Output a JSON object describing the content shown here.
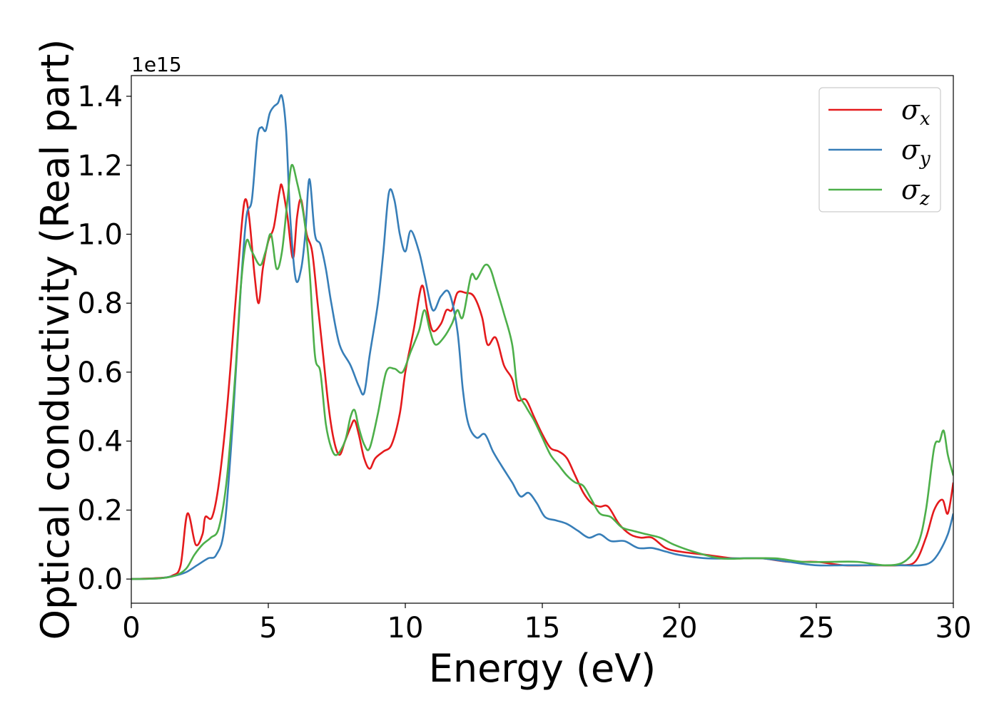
{
  "chart_data": {
    "type": "line",
    "xlabel": "Energy (eV)",
    "ylabel": "Optical conductivity (Real part)",
    "y_offset_label": "1e15",
    "xlim": [
      0,
      30
    ],
    "ylim": [
      -0.07,
      1.46
    ],
    "x_ticks": [
      0,
      5,
      10,
      15,
      20,
      25,
      30
    ],
    "x_tick_labels": [
      "0",
      "5",
      "10",
      "15",
      "20",
      "25",
      "30"
    ],
    "y_ticks": [
      0.0,
      0.2,
      0.4,
      0.6,
      0.8,
      1.0,
      1.2,
      1.4
    ],
    "y_tick_labels": [
      "0.0",
      "0.2",
      "0.4",
      "0.6",
      "0.8",
      "1.0",
      "1.2",
      "1.4"
    ],
    "grid": false,
    "legend_position": "top-right",
    "series": [
      {
        "name": "σx",
        "legend_symbol": "σ",
        "legend_sub": "x",
        "color": "#e41a1c",
        "points": [
          [
            0,
            0
          ],
          [
            1,
            0.003
          ],
          [
            1.5,
            0.01
          ],
          [
            1.8,
            0.04
          ],
          [
            2.05,
            0.19
          ],
          [
            2.35,
            0.1
          ],
          [
            2.6,
            0.13
          ],
          [
            2.7,
            0.18
          ],
          [
            2.95,
            0.18
          ],
          [
            3.2,
            0.28
          ],
          [
            3.5,
            0.5
          ],
          [
            3.8,
            0.8
          ],
          [
            4.0,
            1.0
          ],
          [
            4.15,
            1.1
          ],
          [
            4.3,
            1.05
          ],
          [
            4.5,
            0.88
          ],
          [
            4.65,
            0.8
          ],
          [
            4.8,
            0.9
          ],
          [
            5.0,
            0.98
          ],
          [
            5.2,
            1.02
          ],
          [
            5.4,
            1.12
          ],
          [
            5.5,
            1.14
          ],
          [
            5.7,
            1.05
          ],
          [
            5.9,
            0.93
          ],
          [
            6.05,
            1.05
          ],
          [
            6.2,
            1.1
          ],
          [
            6.4,
            1.0
          ],
          [
            6.6,
            0.95
          ],
          [
            6.8,
            0.8
          ],
          [
            7.0,
            0.65
          ],
          [
            7.2,
            0.5
          ],
          [
            7.4,
            0.4
          ],
          [
            7.6,
            0.36
          ],
          [
            7.8,
            0.4
          ],
          [
            8.0,
            0.44
          ],
          [
            8.15,
            0.46
          ],
          [
            8.3,
            0.42
          ],
          [
            8.5,
            0.35
          ],
          [
            8.7,
            0.32
          ],
          [
            8.9,
            0.35
          ],
          [
            9.2,
            0.37
          ],
          [
            9.5,
            0.39
          ],
          [
            9.8,
            0.48
          ],
          [
            10.0,
            0.6
          ],
          [
            10.3,
            0.72
          ],
          [
            10.6,
            0.85
          ],
          [
            10.8,
            0.78
          ],
          [
            11.0,
            0.72
          ],
          [
            11.3,
            0.74
          ],
          [
            11.5,
            0.78
          ],
          [
            11.7,
            0.78
          ],
          [
            11.9,
            0.83
          ],
          [
            12.2,
            0.83
          ],
          [
            12.5,
            0.82
          ],
          [
            12.8,
            0.76
          ],
          [
            13.0,
            0.68
          ],
          [
            13.3,
            0.7
          ],
          [
            13.6,
            0.62
          ],
          [
            13.9,
            0.58
          ],
          [
            14.1,
            0.52
          ],
          [
            14.4,
            0.52
          ],
          [
            14.7,
            0.47
          ],
          [
            15.0,
            0.42
          ],
          [
            15.3,
            0.38
          ],
          [
            15.6,
            0.37
          ],
          [
            15.9,
            0.35
          ],
          [
            16.2,
            0.3
          ],
          [
            16.5,
            0.25
          ],
          [
            16.8,
            0.22
          ],
          [
            17.1,
            0.21
          ],
          [
            17.4,
            0.21
          ],
          [
            17.8,
            0.16
          ],
          [
            18.2,
            0.13
          ],
          [
            18.6,
            0.12
          ],
          [
            19.0,
            0.12
          ],
          [
            19.5,
            0.09
          ],
          [
            20.0,
            0.08
          ],
          [
            21.0,
            0.07
          ],
          [
            22.0,
            0.06
          ],
          [
            23.0,
            0.06
          ],
          [
            24.0,
            0.05
          ],
          [
            25.0,
            0.05
          ],
          [
            26.0,
            0.04
          ],
          [
            27.0,
            0.04
          ],
          [
            28.0,
            0.04
          ],
          [
            28.6,
            0.05
          ],
          [
            29.0,
            0.12
          ],
          [
            29.3,
            0.2
          ],
          [
            29.6,
            0.23
          ],
          [
            29.8,
            0.19
          ],
          [
            30.0,
            0.28
          ]
        ]
      },
      {
        "name": "σy",
        "legend_symbol": "σ",
        "legend_sub": "y",
        "color": "#377eb8",
        "points": [
          [
            0,
            0
          ],
          [
            1,
            0.002
          ],
          [
            1.6,
            0.01
          ],
          [
            2.0,
            0.02
          ],
          [
            2.4,
            0.04
          ],
          [
            2.8,
            0.06
          ],
          [
            3.1,
            0.07
          ],
          [
            3.4,
            0.15
          ],
          [
            3.7,
            0.45
          ],
          [
            4.0,
            0.85
          ],
          [
            4.2,
            1.05
          ],
          [
            4.4,
            1.1
          ],
          [
            4.6,
            1.28
          ],
          [
            4.75,
            1.31
          ],
          [
            4.9,
            1.3
          ],
          [
            5.05,
            1.35
          ],
          [
            5.2,
            1.37
          ],
          [
            5.35,
            1.38
          ],
          [
            5.5,
            1.4
          ],
          [
            5.65,
            1.3
          ],
          [
            5.8,
            1.05
          ],
          [
            6.0,
            0.87
          ],
          [
            6.2,
            0.9
          ],
          [
            6.35,
            1.0
          ],
          [
            6.5,
            1.16
          ],
          [
            6.7,
            1.0
          ],
          [
            6.9,
            0.97
          ],
          [
            7.1,
            0.9
          ],
          [
            7.3,
            0.8
          ],
          [
            7.6,
            0.68
          ],
          [
            8.0,
            0.62
          ],
          [
            8.3,
            0.56
          ],
          [
            8.5,
            0.54
          ],
          [
            8.7,
            0.65
          ],
          [
            9.0,
            0.8
          ],
          [
            9.2,
            0.95
          ],
          [
            9.4,
            1.12
          ],
          [
            9.6,
            1.1
          ],
          [
            9.8,
            1.0
          ],
          [
            10.0,
            0.95
          ],
          [
            10.2,
            1.01
          ],
          [
            10.5,
            0.95
          ],
          [
            10.7,
            0.88
          ],
          [
            11.0,
            0.78
          ],
          [
            11.3,
            0.82
          ],
          [
            11.6,
            0.83
          ],
          [
            11.9,
            0.72
          ],
          [
            12.1,
            0.55
          ],
          [
            12.3,
            0.45
          ],
          [
            12.6,
            0.41
          ],
          [
            12.9,
            0.42
          ],
          [
            13.2,
            0.37
          ],
          [
            13.5,
            0.33
          ],
          [
            13.9,
            0.28
          ],
          [
            14.2,
            0.24
          ],
          [
            14.5,
            0.25
          ],
          [
            14.8,
            0.22
          ],
          [
            15.1,
            0.18
          ],
          [
            15.5,
            0.17
          ],
          [
            15.9,
            0.16
          ],
          [
            16.3,
            0.14
          ],
          [
            16.7,
            0.12
          ],
          [
            17.1,
            0.13
          ],
          [
            17.5,
            0.11
          ],
          [
            18.0,
            0.11
          ],
          [
            18.5,
            0.09
          ],
          [
            19.0,
            0.09
          ],
          [
            19.5,
            0.08
          ],
          [
            20.0,
            0.07
          ],
          [
            21.0,
            0.06
          ],
          [
            22.0,
            0.06
          ],
          [
            23.0,
            0.06
          ],
          [
            24.0,
            0.05
          ],
          [
            25.0,
            0.04
          ],
          [
            26.0,
            0.04
          ],
          [
            27.0,
            0.04
          ],
          [
            28.0,
            0.04
          ],
          [
            28.8,
            0.04
          ],
          [
            29.2,
            0.05
          ],
          [
            29.5,
            0.08
          ],
          [
            29.8,
            0.13
          ],
          [
            30.0,
            0.19
          ]
        ]
      },
      {
        "name": "σz",
        "legend_symbol": "σ",
        "legend_sub": "z",
        "color": "#4daf4a",
        "points": [
          [
            0,
            0
          ],
          [
            1,
            0.002
          ],
          [
            1.6,
            0.01
          ],
          [
            2.0,
            0.03
          ],
          [
            2.3,
            0.07
          ],
          [
            2.6,
            0.1
          ],
          [
            2.9,
            0.12
          ],
          [
            3.2,
            0.15
          ],
          [
            3.5,
            0.3
          ],
          [
            3.8,
            0.6
          ],
          [
            4.0,
            0.85
          ],
          [
            4.2,
            0.98
          ],
          [
            4.4,
            0.95
          ],
          [
            4.7,
            0.91
          ],
          [
            4.9,
            0.95
          ],
          [
            5.1,
            1.0
          ],
          [
            5.3,
            0.9
          ],
          [
            5.5,
            0.95
          ],
          [
            5.7,
            1.1
          ],
          [
            5.85,
            1.2
          ],
          [
            6.05,
            1.15
          ],
          [
            6.3,
            1.05
          ],
          [
            6.5,
            0.9
          ],
          [
            6.7,
            0.65
          ],
          [
            6.9,
            0.6
          ],
          [
            7.1,
            0.45
          ],
          [
            7.3,
            0.38
          ],
          [
            7.5,
            0.36
          ],
          [
            7.8,
            0.4
          ],
          [
            8.0,
            0.47
          ],
          [
            8.15,
            0.49
          ],
          [
            8.3,
            0.44
          ],
          [
            8.5,
            0.39
          ],
          [
            8.7,
            0.38
          ],
          [
            9.0,
            0.48
          ],
          [
            9.3,
            0.6
          ],
          [
            9.6,
            0.61
          ],
          [
            9.9,
            0.6
          ],
          [
            10.2,
            0.66
          ],
          [
            10.5,
            0.72
          ],
          [
            10.7,
            0.78
          ],
          [
            10.9,
            0.72
          ],
          [
            11.1,
            0.68
          ],
          [
            11.4,
            0.7
          ],
          [
            11.7,
            0.74
          ],
          [
            11.9,
            0.78
          ],
          [
            12.1,
            0.76
          ],
          [
            12.4,
            0.88
          ],
          [
            12.6,
            0.87
          ],
          [
            12.9,
            0.91
          ],
          [
            13.1,
            0.9
          ],
          [
            13.3,
            0.85
          ],
          [
            13.6,
            0.77
          ],
          [
            13.9,
            0.68
          ],
          [
            14.1,
            0.55
          ],
          [
            14.4,
            0.5
          ],
          [
            14.7,
            0.46
          ],
          [
            15.0,
            0.41
          ],
          [
            15.3,
            0.36
          ],
          [
            15.6,
            0.33
          ],
          [
            15.9,
            0.3
          ],
          [
            16.2,
            0.28
          ],
          [
            16.5,
            0.27
          ],
          [
            16.8,
            0.23
          ],
          [
            17.1,
            0.19
          ],
          [
            17.5,
            0.18
          ],
          [
            17.9,
            0.15
          ],
          [
            18.3,
            0.14
          ],
          [
            18.8,
            0.13
          ],
          [
            19.3,
            0.12
          ],
          [
            19.8,
            0.1
          ],
          [
            20.5,
            0.08
          ],
          [
            21.5,
            0.06
          ],
          [
            22.5,
            0.06
          ],
          [
            23.5,
            0.06
          ],
          [
            24.5,
            0.05
          ],
          [
            25.5,
            0.05
          ],
          [
            26.5,
            0.05
          ],
          [
            27.5,
            0.04
          ],
          [
            28.2,
            0.05
          ],
          [
            28.7,
            0.1
          ],
          [
            29.0,
            0.2
          ],
          [
            29.3,
            0.38
          ],
          [
            29.5,
            0.4
          ],
          [
            29.65,
            0.43
          ],
          [
            29.8,
            0.36
          ],
          [
            30.0,
            0.3
          ]
        ]
      }
    ]
  }
}
